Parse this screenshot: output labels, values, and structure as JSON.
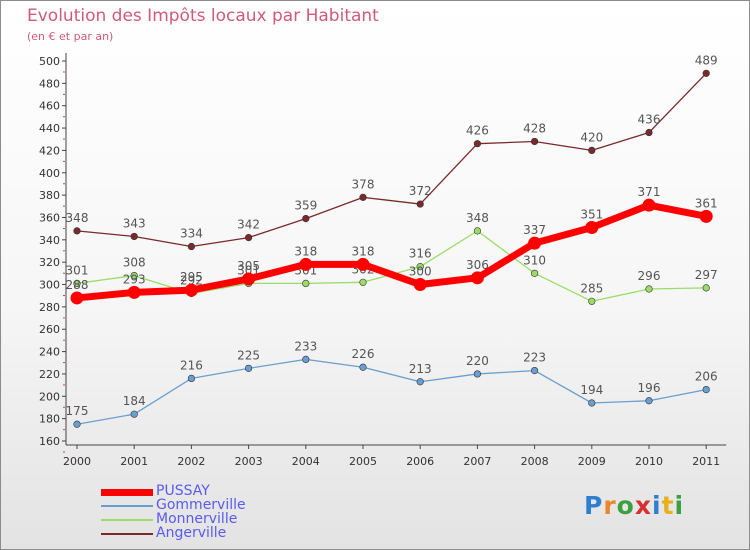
{
  "title": "Evolution des Impôts locaux par Habitant",
  "subtitle": "(en € et par an)",
  "brand": "Proxiti",
  "chart_data": {
    "type": "line",
    "title": "Evolution des Impôts locaux par Habitant",
    "subtitle": "(en € et par an)",
    "x": [
      "2000",
      "2001",
      "2002",
      "2003",
      "2004",
      "2005",
      "2006",
      "2007",
      "2008",
      "2009",
      "2010",
      "2011"
    ],
    "ylim": [
      160,
      500
    ],
    "yticks": [
      160,
      180,
      200,
      220,
      240,
      260,
      280,
      300,
      320,
      340,
      360,
      380,
      400,
      420,
      440,
      460,
      480,
      500
    ],
    "grid": false,
    "legend": "bottom-left",
    "series": [
      {
        "name": "PUSSAY",
        "color": "#ff0000",
        "values": [
          288,
          293,
          295,
          305,
          318,
          318,
          300,
          306,
          337,
          351,
          371,
          361
        ]
      },
      {
        "name": "Gommerville",
        "color": "#6a9ecf",
        "values": [
          175,
          184,
          216,
          225,
          233,
          226,
          213,
          220,
          223,
          194,
          196,
          206
        ]
      },
      {
        "name": "Monnerville",
        "color": "#99dd66",
        "values": [
          301,
          308,
          292,
          301,
          301,
          302,
          316,
          348,
          310,
          285,
          296,
          297
        ]
      },
      {
        "name": "Angerville",
        "color": "#7a2a2a",
        "values": [
          348,
          343,
          334,
          342,
          359,
          378,
          372,
          426,
          428,
          420,
          436,
          489
        ]
      }
    ]
  }
}
